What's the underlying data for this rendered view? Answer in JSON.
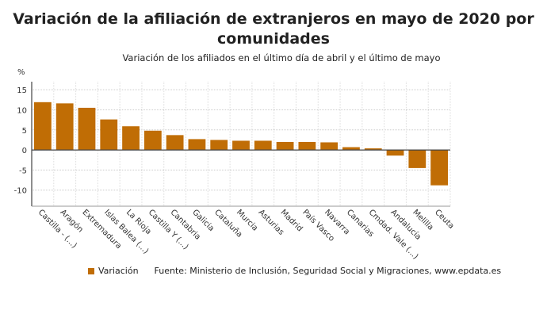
{
  "chart_data": {
    "type": "bar",
    "title": "Variación de la afiliación de extranjeros en mayo de 2020 por comunidades",
    "subtitle": "Variación de los afiliados en el último día de abril y el último de mayo",
    "ylabel": "%",
    "xlabel": "",
    "ylim": [
      -14,
      17
    ],
    "yticks": [
      15,
      10,
      5,
      0,
      -5,
      -10
    ],
    "grid": true,
    "legend_position": "bottom",
    "categories": [
      "Castilla - (...)",
      "Aragón",
      "Extremadura",
      "Islas Balea (...)",
      "La Rioja",
      "Castilla Y (...)",
      "Cantabria",
      "Galicia",
      "Cataluña",
      "Murcia",
      "Asturias",
      "Madrid",
      "País Vasco",
      "Navarra",
      "Canarias",
      "Cmdad. Vale (...)",
      "Andalucía",
      "Melilla",
      "Ceuta"
    ],
    "series": [
      {
        "name": "Variación",
        "color": "#c06d05",
        "values": [
          11.9,
          11.6,
          10.5,
          7.6,
          5.9,
          4.8,
          3.7,
          2.7,
          2.5,
          2.3,
          2.3,
          2.0,
          2.0,
          1.9,
          0.7,
          0.4,
          -1.4,
          -4.5,
          -8.8
        ]
      }
    ],
    "source": "Fuente: Ministerio de Inclusión, Seguridad Social y Migraciones, www.epdata.es"
  }
}
